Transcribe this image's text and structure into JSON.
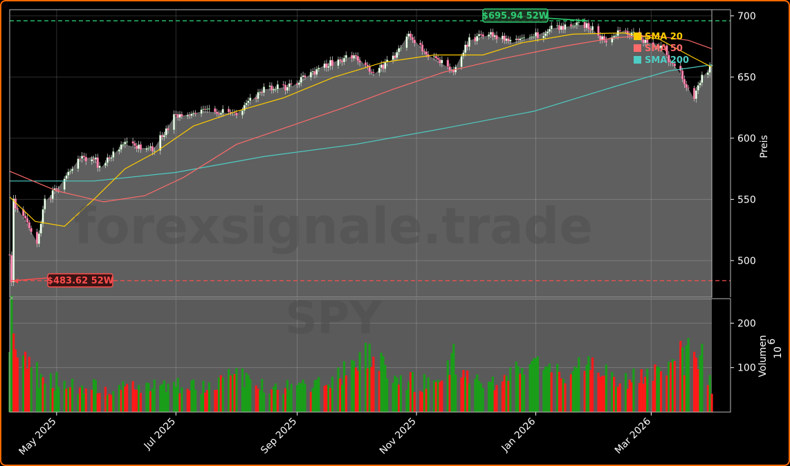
{
  "watermark": {
    "site": "forexsignale.trade",
    "ticker": "SPY"
  },
  "chart_data": {
    "type": "candlestick+volume",
    "symbol": "SPY",
    "x_range": [
      "2025-04-07",
      "2026-04-01"
    ],
    "x_ticks": [
      {
        "date": "2025-05-01",
        "label": "May 2025"
      },
      {
        "date": "2025-07-01",
        "label": "Jul 2025"
      },
      {
        "date": "2025-09-01",
        "label": "Sep 2025"
      },
      {
        "date": "2025-11-01",
        "label": "Nov 2025"
      },
      {
        "date": "2026-01-01",
        "label": "Jan 2026"
      },
      {
        "date": "2026-03-01",
        "label": "Mar 2026"
      }
    ],
    "price_axis": {
      "label": "Preis",
      "ylim": [
        470,
        705
      ],
      "ticks": [
        500,
        550,
        600,
        650,
        700
      ]
    },
    "volume_axis": {
      "label": "Volumen",
      "scale_label": "10",
      "scale_exponent": "6",
      "ylim": [
        0,
        255
      ],
      "ticks": [
        100,
        200
      ]
    },
    "high_52w": {
      "value": 695.94,
      "label": "$695.94 52W",
      "date": "2026-01-27",
      "color": "#2ecc71"
    },
    "low_52w": {
      "value": 483.62,
      "label": "$483.62 52W",
      "date": "2025-04-08",
      "color": "#ff4d4d"
    },
    "legend": [
      {
        "name": "SMA 20",
        "color": "#ffcc00"
      },
      {
        "name": "SMA 50",
        "color": "#ff6b6b"
      },
      {
        "name": "SMA 200",
        "color": "#4ecdc4"
      }
    ],
    "close_points": [
      [
        "2025-04-07",
        505
      ],
      [
        "2025-04-08",
        485
      ],
      [
        "2025-04-09",
        548
      ],
      [
        "2025-04-14",
        535
      ],
      [
        "2025-04-21",
        515
      ],
      [
        "2025-04-25",
        548
      ],
      [
        "2025-05-02",
        560
      ],
      [
        "2025-05-12",
        582
      ],
      [
        "2025-05-20",
        585
      ],
      [
        "2025-05-23",
        575
      ],
      [
        "2025-06-04",
        595
      ],
      [
        "2025-06-13",
        592
      ],
      [
        "2025-06-20",
        592
      ],
      [
        "2025-06-30",
        617
      ],
      [
        "2025-07-15",
        622
      ],
      [
        "2025-08-01",
        620
      ],
      [
        "2025-08-15",
        640
      ],
      [
        "2025-08-29",
        642
      ],
      [
        "2025-09-15",
        660
      ],
      [
        "2025-10-01",
        668
      ],
      [
        "2025-10-10",
        652
      ],
      [
        "2025-10-20",
        665
      ],
      [
        "2025-10-28",
        685
      ],
      [
        "2025-11-07",
        668
      ],
      [
        "2025-11-20",
        655
      ],
      [
        "2025-11-28",
        680
      ],
      [
        "2025-12-10",
        685
      ],
      [
        "2025-12-20",
        678
      ],
      [
        "2025-12-31",
        683
      ],
      [
        "2026-01-10",
        690
      ],
      [
        "2026-01-27",
        693
      ],
      [
        "2026-02-05",
        680
      ],
      [
        "2026-02-15",
        688
      ],
      [
        "2026-02-25",
        680
      ],
      [
        "2026-03-05",
        675
      ],
      [
        "2026-03-15",
        655
      ],
      [
        "2026-03-23",
        632
      ],
      [
        "2026-03-27",
        650
      ],
      [
        "2026-04-01",
        658
      ]
    ],
    "sma20": [
      [
        "2025-04-07",
        552
      ],
      [
        "2025-04-20",
        532
      ],
      [
        "2025-05-05",
        528
      ],
      [
        "2025-05-20",
        550
      ],
      [
        "2025-06-05",
        575
      ],
      [
        "2025-06-20",
        588
      ],
      [
        "2025-07-10",
        610
      ],
      [
        "2025-08-01",
        622
      ],
      [
        "2025-08-25",
        633
      ],
      [
        "2025-09-20",
        650
      ],
      [
        "2025-10-15",
        662
      ],
      [
        "2025-11-10",
        668
      ],
      [
        "2025-12-05",
        668
      ],
      [
        "2025-12-25",
        678
      ],
      [
        "2026-01-20",
        685
      ],
      [
        "2026-02-15",
        686
      ],
      [
        "2026-03-05",
        681
      ],
      [
        "2026-03-20",
        668
      ],
      [
        "2026-04-01",
        658
      ]
    ],
    "sma50": [
      [
        "2025-04-07",
        573
      ],
      [
        "2025-05-01",
        557
      ],
      [
        "2025-05-25",
        548
      ],
      [
        "2025-06-15",
        553
      ],
      [
        "2025-07-05",
        568
      ],
      [
        "2025-08-01",
        595
      ],
      [
        "2025-08-25",
        608
      ],
      [
        "2025-09-25",
        625
      ],
      [
        "2025-10-20",
        640
      ],
      [
        "2025-11-15",
        654
      ],
      [
        "2025-12-15",
        665
      ],
      [
        "2026-01-15",
        675
      ],
      [
        "2026-02-10",
        682
      ],
      [
        "2026-03-01",
        684
      ],
      [
        "2026-03-20",
        680
      ],
      [
        "2026-04-01",
        673
      ]
    ],
    "sma200": [
      [
        "2025-04-07",
        565
      ],
      [
        "2025-05-20",
        565
      ],
      [
        "2025-07-01",
        572
      ],
      [
        "2025-08-15",
        585
      ],
      [
        "2025-10-01",
        595
      ],
      [
        "2025-11-15",
        608
      ],
      [
        "2025-12-31",
        622
      ],
      [
        "2026-02-10",
        642
      ],
      [
        "2026-03-10",
        655
      ],
      [
        "2026-04-01",
        660
      ]
    ],
    "volume_points": [
      [
        "2025-04-07",
        240
      ],
      [
        "2025-04-09",
        235
      ],
      [
        "2025-04-15",
        120
      ],
      [
        "2025-04-25",
        90
      ],
      [
        "2025-05-15",
        65
      ],
      [
        "2025-06-15",
        70
      ],
      [
        "2025-07-15",
        65
      ],
      [
        "2025-08-01",
        100
      ],
      [
        "2025-08-15",
        65
      ],
      [
        "2025-09-15",
        70
      ],
      [
        "2025-10-10",
        155
      ],
      [
        "2025-10-20",
        75
      ],
      [
        "2025-11-15",
        85
      ],
      [
        "2025-11-20",
        155
      ],
      [
        "2025-12-05",
        60
      ],
      [
        "2025-12-20",
        105
      ],
      [
        "2026-01-15",
        115
      ],
      [
        "2026-02-05",
        110
      ],
      [
        "2026-02-20",
        90
      ],
      [
        "2026-03-10",
        100
      ],
      [
        "2026-03-15",
        150
      ],
      [
        "2026-03-27",
        145
      ],
      [
        "2026-04-01",
        65
      ]
    ]
  }
}
